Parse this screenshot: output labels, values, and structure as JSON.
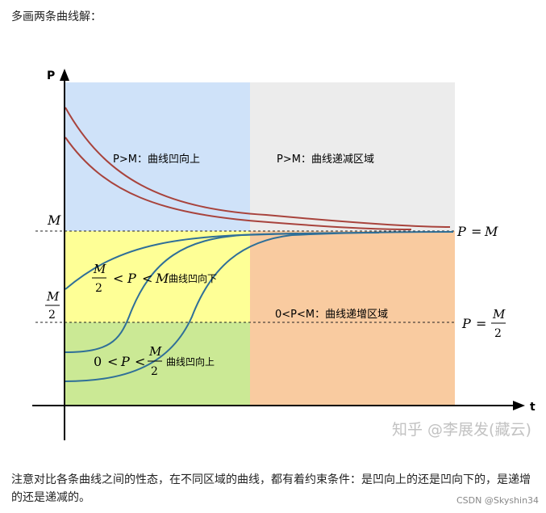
{
  "heading": "多画两条曲线解：",
  "figure": {
    "axis_y_label": "P",
    "axis_x_label": "t",
    "label_M": "M",
    "label_M_frac_num": "M",
    "label_M_frac_den": "2",
    "line_label_PM_P": "P",
    "line_label_PM_eq": "=",
    "line_label_PM_M": "M",
    "line_label_PM2_P": "P",
    "line_label_PM2_eq": "=",
    "line_label_PM2_num": "M",
    "line_label_PM2_den": "2",
    "region_top_left": "P>M：曲线凹向上",
    "region_top_right": "P>M：曲线递减区域",
    "region_mid_right": "0<P<M：曲线递增区域",
    "ineq_upper_num": "M",
    "ineq_upper_den": "2",
    "ineq_upper_lt1": "<",
    "ineq_upper_P": "P",
    "ineq_upper_lt2": "<",
    "ineq_upper_M": "M",
    "ineq_upper_text": "曲线凹向下",
    "ineq_lower_zero": "0",
    "ineq_lower_lt1": "<",
    "ineq_lower_P": "P",
    "ineq_lower_lt2": "<",
    "ineq_lower_num": "M",
    "ineq_lower_den": "2",
    "ineq_lower_text": "曲线凹向上",
    "watermark": "知乎 @李展发(藏云)"
  },
  "colors": {
    "region_blue": "#cfe2f9",
    "region_gray": "#ececec",
    "region_yellow": "#feff96",
    "region_orange": "#f9cba0",
    "region_green": "#cbe995",
    "curve_red": "#a8433c",
    "curve_blue": "#2f6f98"
  },
  "caption": "注意对比各条曲线之间的性态，在不同区域的曲线，都有着约束条件：是凹向上的还是凹向下的，是递增的还是递减的。",
  "credit": "CSDN @Skyshin34"
}
